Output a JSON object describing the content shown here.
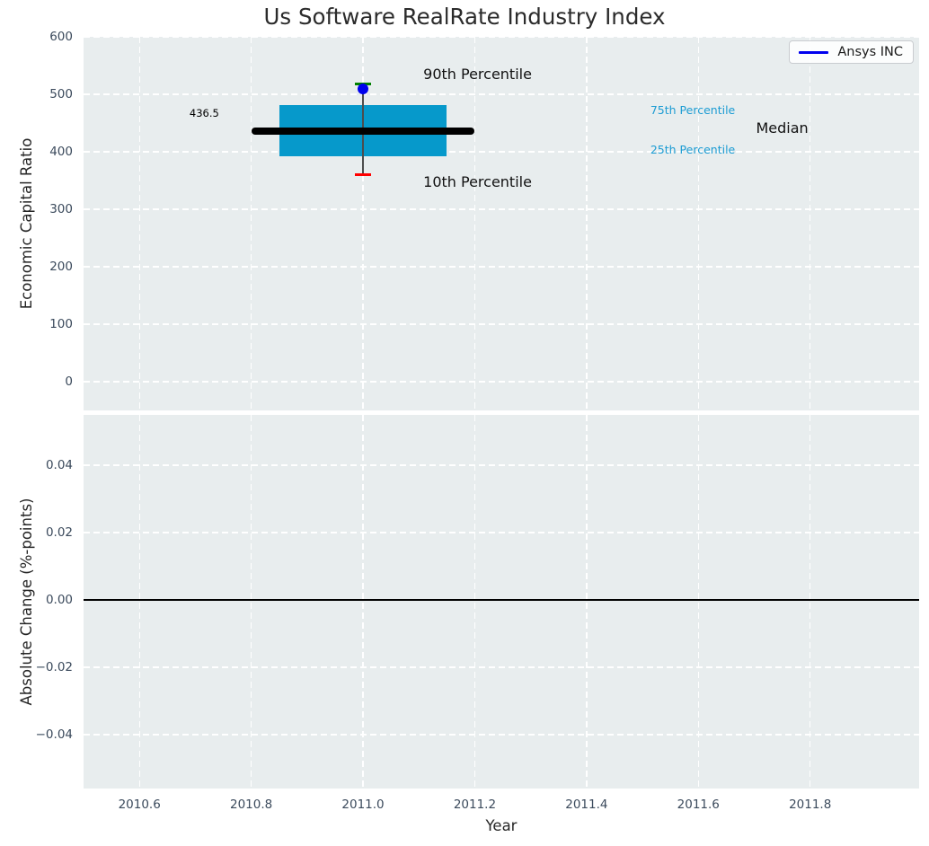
{
  "figure": {
    "title": "Us Software RealRate Industry Index"
  },
  "style": {
    "axes_bg": "#e8edee",
    "grid_color": "#ffffff",
    "tick_label_color": "#3b4a5c",
    "text_color": "#262626"
  },
  "chart_data": [
    {
      "type": "boxplot",
      "title": "Us Software RealRate Industry Index",
      "ylabel": "Economic Capital Ratio",
      "xlim": [
        2010.5,
        2011.995
      ],
      "ylim": [
        -50,
        600
      ],
      "grid": true,
      "legend_position": "upper right",
      "legend": {
        "label": "Ansys INC",
        "line_color": "#0000ee"
      },
      "show_xtick_labels": false,
      "yticks": [
        {
          "value": 0,
          "label": "0"
        },
        {
          "value": 100,
          "label": "100"
        },
        {
          "value": 200,
          "label": "200"
        },
        {
          "value": 300,
          "label": "300"
        },
        {
          "value": 400,
          "label": "400"
        },
        {
          "value": 500,
          "label": "500"
        },
        {
          "value": 600,
          "label": "600"
        }
      ],
      "xticks": [
        {
          "value": 2010.6,
          "label": "2010.6"
        },
        {
          "value": 2010.8,
          "label": "2010.8"
        },
        {
          "value": 2011.0,
          "label": "2011.0"
        },
        {
          "value": 2011.2,
          "label": "2011.2"
        },
        {
          "value": 2011.4,
          "label": "2011.4"
        },
        {
          "value": 2011.6,
          "label": "2011.6"
        },
        {
          "value": 2011.8,
          "label": "2011.8"
        }
      ],
      "box": {
        "x": 2011.0,
        "p10": 360,
        "p25": 392,
        "median": 436.5,
        "p75": 481,
        "p90": 518,
        "company_point": 510,
        "box_half_width": 0.15,
        "median_half_width": 0.2,
        "cap_half_width": 0.015,
        "box_color": "#0699cb",
        "median_color": "#000000",
        "whisker_color": "#4d4d4d",
        "p90_cap_color": "#008000",
        "p10_cap_color": "#ff0000",
        "point_color": "#0000ee"
      },
      "annotations": [
        {
          "text": "436.5",
          "x": 2010.716,
          "y": 467,
          "color": "#000000",
          "size": 11.5
        },
        {
          "text": "90th Percentile",
          "x": 2011.205,
          "y": 534,
          "color": "#111111",
          "size": 16
        },
        {
          "text": "10th Percentile",
          "x": 2011.205,
          "y": 347,
          "color": "#111111",
          "size": 16
        },
        {
          "text": "75th Percentile",
          "x": 2011.59,
          "y": 472,
          "color": "#1c9cd3",
          "size": 12.5
        },
        {
          "text": "25th Percentile",
          "x": 2011.59,
          "y": 403,
          "color": "#1c9cd3",
          "size": 12.5
        },
        {
          "text": "Median",
          "x": 2011.75,
          "y": 440,
          "color": "#111111",
          "size": 16
        }
      ]
    },
    {
      "type": "line",
      "ylabel": "Absolute Change (%-points)",
      "xlabel": "Year",
      "xlim": [
        2010.5,
        2011.995
      ],
      "ylim": [
        -0.056,
        0.0549
      ],
      "grid": true,
      "series": [],
      "zero_line": {
        "y": 0.0,
        "color": "#000000"
      },
      "show_xtick_labels": true,
      "yticks": [
        {
          "value": 0.04,
          "label": "0.04"
        },
        {
          "value": 0.02,
          "label": "0.02"
        },
        {
          "value": 0.0,
          "label": "0.00"
        },
        {
          "value": -0.02,
          "label": "−0.02"
        },
        {
          "value": -0.04,
          "label": "−0.04"
        }
      ],
      "xticks": [
        {
          "value": 2010.6,
          "label": "2010.6"
        },
        {
          "value": 2010.8,
          "label": "2010.8"
        },
        {
          "value": 2011.0,
          "label": "2011.0"
        },
        {
          "value": 2011.2,
          "label": "2011.2"
        },
        {
          "value": 2011.4,
          "label": "2011.4"
        },
        {
          "value": 2011.6,
          "label": "2011.6"
        },
        {
          "value": 2011.8,
          "label": "2011.8"
        }
      ]
    }
  ]
}
